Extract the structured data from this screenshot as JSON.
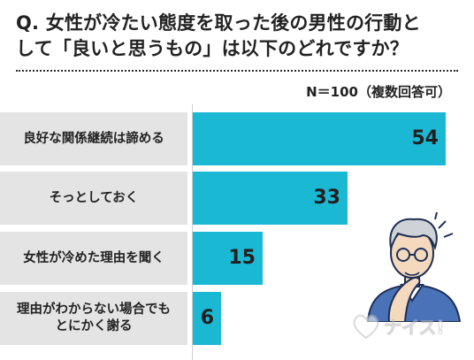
{
  "title": {
    "line1": "Q. 女性が冷たい態度を取った後の男性の行動と",
    "line2": "して「良いと思うもの」は以下のどれですか？"
  },
  "note": "N＝100（複数回答可）",
  "colors": {
    "bar": "#1bb8d4",
    "band": "#e4e4e4"
  },
  "chart_data": {
    "type": "bar",
    "orientation": "horizontal",
    "categories": [
      "良好な関係継続は諦める",
      "そっとしておく",
      "女性が冷めた理由を聞く",
      "理由がわからない場合でも\nとにかく謝る"
    ],
    "values": [
      54,
      33,
      15,
      6
    ],
    "xlim": [
      0,
      54
    ],
    "grid": false,
    "legend": "none"
  },
  "illustration": {
    "icon": "thinking-man-icon"
  },
  "logo": {
    "icon": "heart-logo-icon",
    "text": "ナイス!"
  }
}
